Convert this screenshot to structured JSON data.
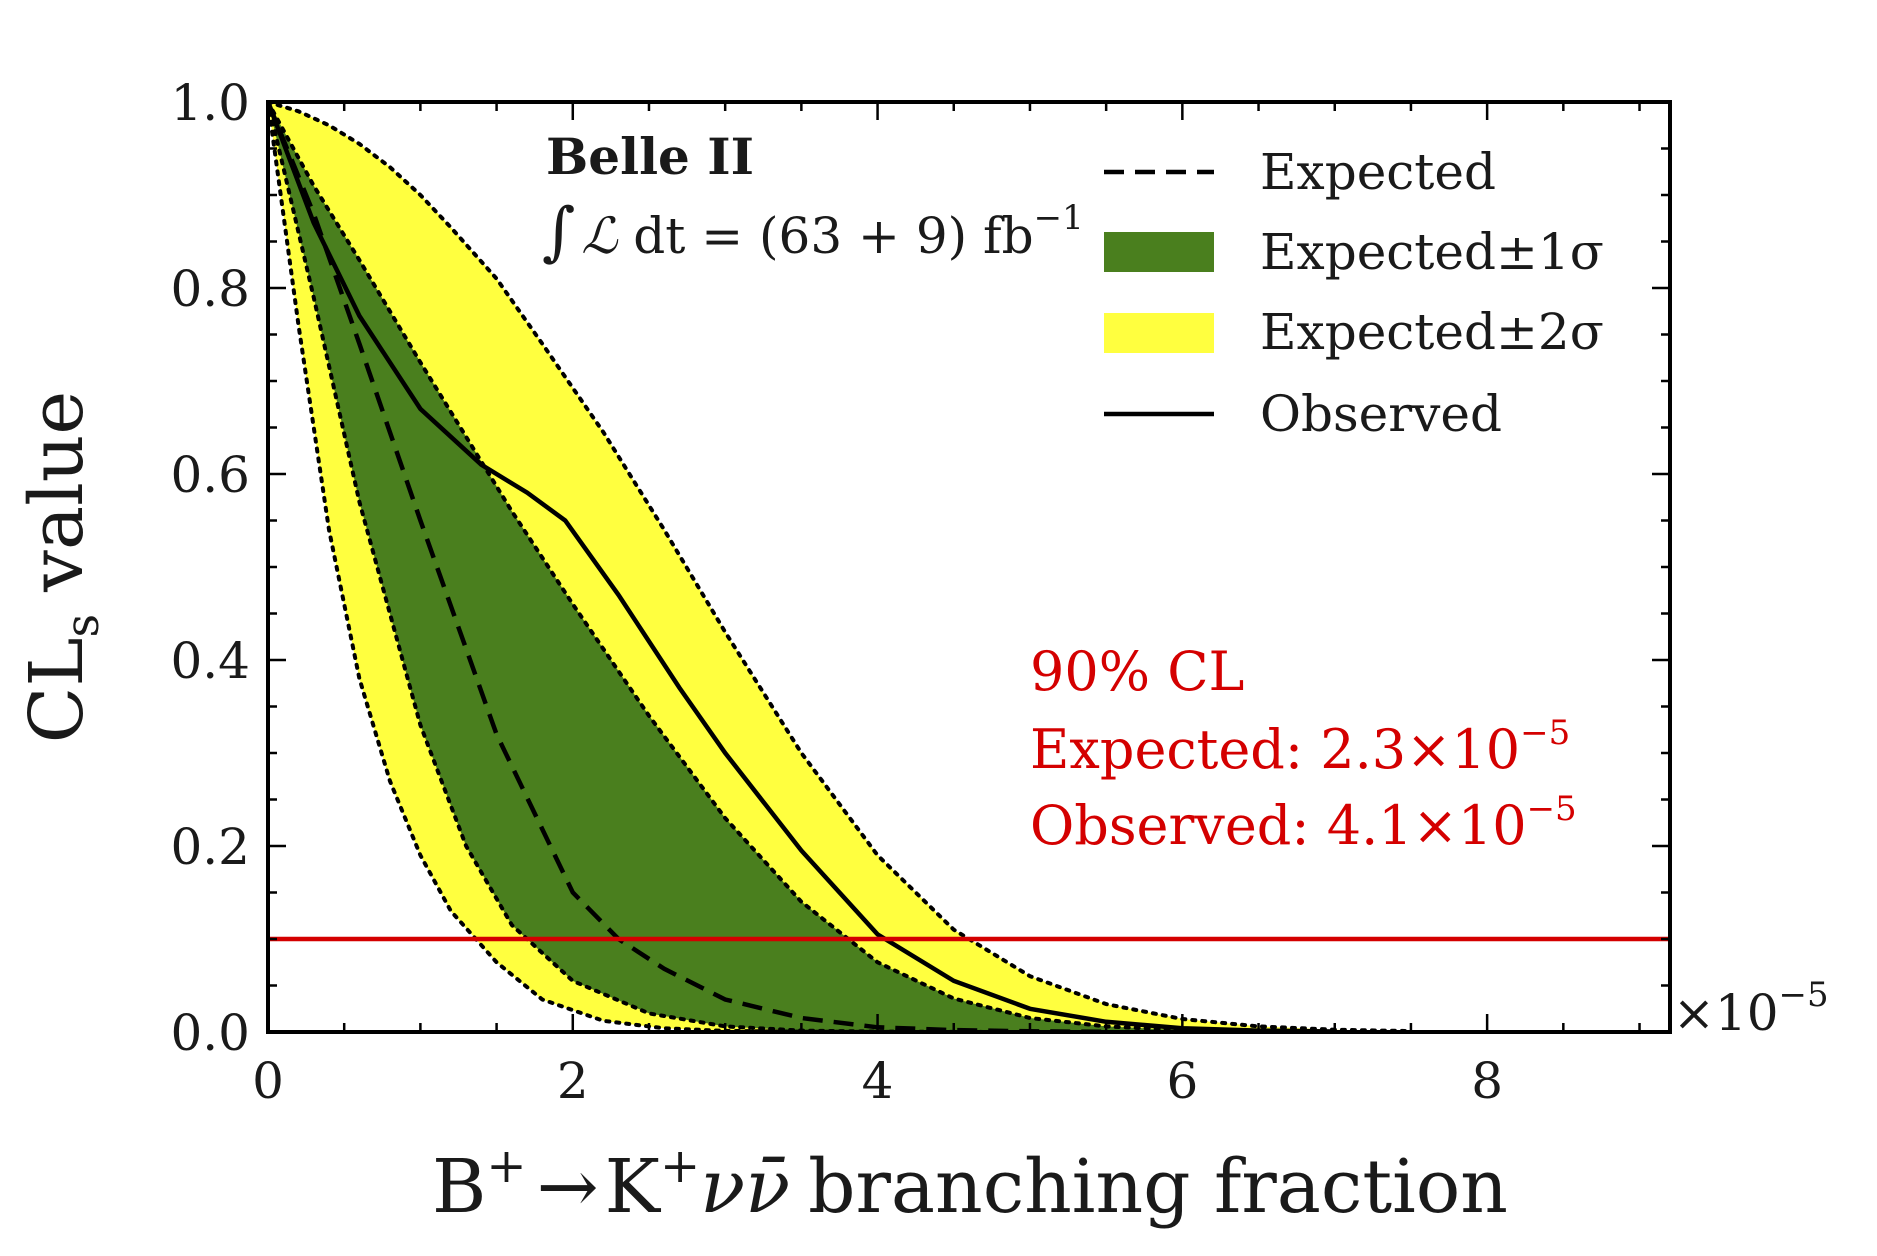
{
  "chart_data": {
    "type": "line",
    "title": "",
    "xlabel": {
      "prefix": "B",
      "sup1": "+",
      "arrow": "→",
      "k": "K",
      "sup2": "+",
      "nu": "ν",
      "nubar": "ν̄",
      "rest": "branching fraction"
    },
    "ylabel": {
      "main": "CL",
      "sub": "s",
      "rest": "value"
    },
    "x_multiplier": {
      "base": "×10",
      "exp": "−5"
    },
    "xlim": [
      0,
      9.2
    ],
    "ylim": [
      0.0,
      1.0
    ],
    "x_ticks": [
      0,
      2,
      4,
      6,
      8
    ],
    "x_tick_labels": [
      "0",
      "2",
      "4",
      "6",
      "8"
    ],
    "y_ticks": [
      0.0,
      0.2,
      0.4,
      0.6,
      0.8,
      1.0
    ],
    "y_tick_labels": [
      "0.0",
      "0.2",
      "0.4",
      "0.6",
      "0.8",
      "1.0"
    ],
    "grid": false,
    "legend_position": "top-right",
    "colors": {
      "band_1sigma": "#4a7f1e",
      "band_2sigma": "#ffff3f",
      "limit_line": "#d40000",
      "lines": "#000000"
    },
    "series": [
      {
        "name": "Expected",
        "style": "dashed",
        "x": [
          0,
          0.3,
          0.6,
          1.0,
          1.5,
          2.0,
          2.3,
          2.6,
          3.0,
          3.5,
          4.0,
          4.5,
          5.0,
          5.5
        ],
        "y": [
          1.0,
          0.88,
          0.74,
          0.55,
          0.32,
          0.15,
          0.1,
          0.068,
          0.035,
          0.015,
          0.005,
          0.002,
          0.0007,
          0.0002
        ]
      },
      {
        "name": "Observed",
        "style": "solid",
        "x": [
          0,
          0.3,
          0.6,
          1.0,
          1.4,
          1.7,
          1.95,
          2.3,
          2.7,
          3.0,
          3.5,
          4.0,
          4.5,
          5.0,
          5.5,
          6.0,
          6.5,
          7.0
        ],
        "y": [
          1.0,
          0.87,
          0.77,
          0.67,
          0.61,
          0.58,
          0.55,
          0.47,
          0.37,
          0.3,
          0.195,
          0.105,
          0.055,
          0.025,
          0.011,
          0.004,
          0.0015,
          0.0005
        ]
      },
      {
        "name": "Expected±1σ",
        "style": "band",
        "x": [
          0,
          0.3,
          0.6,
          1.0,
          1.3,
          1.6,
          2.0,
          2.5,
          3.0,
          3.5,
          4.0,
          4.5,
          5.0,
          5.5,
          6.0,
          6.5
        ],
        "lower": [
          1.0,
          0.79,
          0.57,
          0.33,
          0.2,
          0.115,
          0.055,
          0.02,
          0.006,
          0.0015,
          0.0004,
          0.0001,
          0.0,
          0.0,
          0.0,
          0.0
        ],
        "upper": [
          1.0,
          0.91,
          0.83,
          0.72,
          0.64,
          0.56,
          0.46,
          0.34,
          0.23,
          0.14,
          0.075,
          0.036,
          0.015,
          0.006,
          0.002,
          0.0007
        ]
      },
      {
        "name": "Expected±2σ",
        "style": "band",
        "x": [
          0,
          0.2,
          0.4,
          0.6,
          0.8,
          1.0,
          1.2,
          1.5,
          1.8,
          2.2,
          2.6,
          3.0,
          3.5,
          4.0,
          4.5,
          5.0,
          5.5,
          6.0,
          6.5,
          7.0,
          7.5
        ],
        "lower": [
          1.0,
          0.76,
          0.54,
          0.38,
          0.27,
          0.19,
          0.13,
          0.075,
          0.035,
          0.012,
          0.004,
          0.0012,
          0.0003,
          0.0001,
          0.0,
          0.0,
          0.0,
          0.0,
          0.0,
          0.0,
          0.0
        ],
        "upper": [
          1.0,
          0.99,
          0.975,
          0.955,
          0.93,
          0.9,
          0.865,
          0.81,
          0.74,
          0.645,
          0.54,
          0.43,
          0.3,
          0.19,
          0.11,
          0.06,
          0.03,
          0.014,
          0.006,
          0.0025,
          0.001
        ]
      }
    ],
    "threshold": {
      "y": 0.1
    },
    "annotations": {
      "experiment": "Belle II",
      "lumi_prefix": "∫",
      "lumi_L": "ℒ",
      "lumi_body": " dt = (63 + 9) fb",
      "lumi_exp": "−1",
      "cl_title": "90% CL",
      "expected_label": "Expected: ",
      "expected_value": "2.3×10",
      "expected_exp": "−5",
      "observed_label": "Observed: ",
      "observed_value": "4.1×10",
      "observed_exp": "−5"
    },
    "legend": [
      "Expected",
      "Expected±1σ",
      "Expected±2σ",
      "Observed"
    ]
  }
}
